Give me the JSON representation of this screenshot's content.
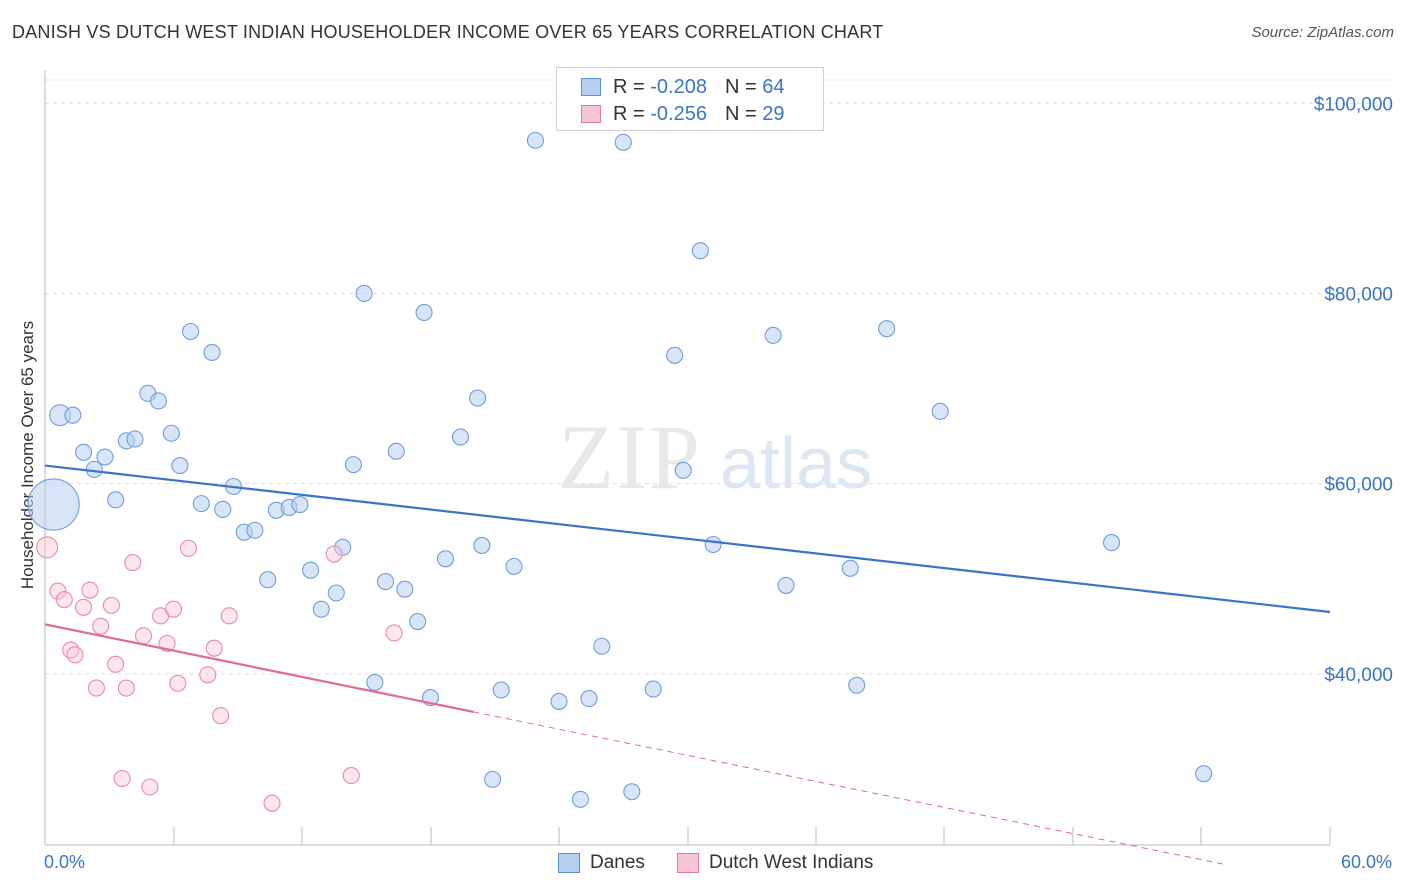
{
  "title": "DANISH VS DUTCH WEST INDIAN HOUSEHOLDER INCOME OVER 65 YEARS CORRELATION CHART",
  "source": "Source: ZipAtlas.com",
  "watermark": {
    "zip": "ZIP",
    "atlas": "atlas"
  },
  "legend_top": {
    "rows": [
      {
        "r_label": "R =",
        "r_value": "-0.208",
        "n_label": "N =",
        "n_value": "64",
        "color": "#5b8fd6",
        "fill": "#b7d0f1"
      },
      {
        "r_label": "R =",
        "r_value": "-0.256",
        "n_label": "N =",
        "n_value": "29",
        "color": "#e67a9e",
        "fill": "#f8c5d4"
      }
    ]
  },
  "legend_bottom": {
    "items": [
      {
        "label": "Danes",
        "color": "#5b8fd6",
        "fill": "#b7d0f1"
      },
      {
        "label": "Dutch West Indians",
        "color": "#e67a9e",
        "fill": "#f8c5d4"
      }
    ]
  },
  "chart_data": {
    "type": "scatter",
    "ylabel": "Householder Income Over 65 years",
    "x_tick_labels": {
      "min": "0.0%",
      "max": "60.0%"
    },
    "y_tick_labels": [
      "$40,000",
      "$60,000",
      "$80,000",
      "$100,000"
    ],
    "y_ticks": [
      40000,
      60000,
      80000,
      100000
    ],
    "xlim": [
      0,
      60
    ],
    "ylim": [
      22000,
      103500
    ],
    "grid": true,
    "colors": {
      "danes": "#3a74c8",
      "dutch": "#e06b96"
    },
    "series": [
      {
        "name": "Danes",
        "trend": {
          "x0": 0,
          "y0": 61900,
          "x1": 60,
          "y1": 46500
        },
        "points": [
          [
            0.4,
            57800,
            3.2
          ],
          [
            0.7,
            67200,
            1.3
          ],
          [
            1.3,
            67200,
            1.0
          ],
          [
            1.8,
            63300,
            1.0
          ],
          [
            2.3,
            61500,
            1.0
          ],
          [
            2.8,
            62800,
            1.0
          ],
          [
            3.3,
            58300,
            1.0
          ],
          [
            3.8,
            64500,
            1.0
          ],
          [
            4.2,
            64700,
            1.0
          ],
          [
            4.8,
            69500,
            1.0
          ],
          [
            5.3,
            68700,
            1.0
          ],
          [
            5.9,
            65300,
            1.0
          ],
          [
            6.3,
            61900,
            1.0
          ],
          [
            6.8,
            76000,
            1.0
          ],
          [
            7.3,
            57900,
            1.0
          ],
          [
            7.8,
            73800,
            1.0
          ],
          [
            8.3,
            57300,
            1.0
          ],
          [
            8.8,
            59700,
            1.0
          ],
          [
            9.3,
            54900,
            1.0
          ],
          [
            9.8,
            55100,
            1.0
          ],
          [
            10.4,
            49900,
            1.0
          ],
          [
            10.8,
            57200,
            1.0
          ],
          [
            11.4,
            57500,
            1.0
          ],
          [
            11.9,
            57800,
            1.0
          ],
          [
            12.4,
            50900,
            1.0
          ],
          [
            12.9,
            46800,
            1.0
          ],
          [
            13.6,
            48500,
            1.0
          ],
          [
            13.9,
            53300,
            1.0
          ],
          [
            14.4,
            62000,
            1.0
          ],
          [
            14.9,
            80000,
            1.0
          ],
          [
            15.4,
            39100,
            1.0
          ],
          [
            15.9,
            49700,
            1.0
          ],
          [
            16.4,
            63400,
            1.0
          ],
          [
            16.8,
            48900,
            1.0
          ],
          [
            17.4,
            45500,
            1.0
          ],
          [
            17.7,
            78000,
            1.0
          ],
          [
            18.0,
            37500,
            1.0
          ],
          [
            18.7,
            52100,
            1.0
          ],
          [
            19.4,
            64900,
            1.0
          ],
          [
            20.2,
            69000,
            1.0
          ],
          [
            20.4,
            53500,
            1.0
          ],
          [
            20.9,
            28900,
            1.0
          ],
          [
            21.3,
            38300,
            1.0
          ],
          [
            21.9,
            51300,
            1.0
          ],
          [
            22.9,
            96100,
            1.0
          ],
          [
            24.0,
            37100,
            1.0
          ],
          [
            25.0,
            26800,
            1.0
          ],
          [
            25.4,
            37400,
            1.0
          ],
          [
            26.0,
            42900,
            1.0
          ],
          [
            27.0,
            95900,
            1.0
          ],
          [
            27.4,
            27600,
            1.0
          ],
          [
            28.4,
            38400,
            1.0
          ],
          [
            29.4,
            73500,
            1.0
          ],
          [
            29.8,
            61400,
            1.0
          ],
          [
            30.6,
            84500,
            1.0
          ],
          [
            31.2,
            53600,
            1.0
          ],
          [
            34.0,
            75600,
            1.0
          ],
          [
            34.6,
            49300,
            1.0
          ],
          [
            37.6,
            51100,
            1.0
          ],
          [
            37.9,
            38800,
            1.0
          ],
          [
            39.3,
            76300,
            1.0
          ],
          [
            41.8,
            67600,
            1.0
          ],
          [
            49.8,
            53800,
            1.0
          ],
          [
            54.1,
            29500,
            1.0
          ]
        ]
      },
      {
        "name": "Dutch West Indians",
        "trend": {
          "x0": 0,
          "y0": 45200,
          "x1": 20,
          "y1": 36000,
          "dash_x1": 55,
          "dash_y1": 20000
        },
        "points": [
          [
            0.1,
            53300,
            1.3
          ],
          [
            0.6,
            48700,
            1.0
          ],
          [
            0.9,
            47800,
            1.0
          ],
          [
            1.2,
            42500,
            1.0
          ],
          [
            1.4,
            42000,
            1.0
          ],
          [
            1.8,
            47000,
            1.0
          ],
          [
            2.1,
            48800,
            1.0
          ],
          [
            2.4,
            38500,
            1.0
          ],
          [
            2.6,
            45000,
            1.0
          ],
          [
            3.1,
            47200,
            1.0
          ],
          [
            3.3,
            41000,
            1.0
          ],
          [
            3.6,
            29000,
            1.0
          ],
          [
            3.8,
            38500,
            1.0
          ],
          [
            4.1,
            51700,
            1.0
          ],
          [
            4.6,
            44000,
            1.0
          ],
          [
            4.9,
            28100,
            1.0
          ],
          [
            5.4,
            46100,
            1.0
          ],
          [
            5.7,
            43200,
            1.0
          ],
          [
            6.0,
            46800,
            1.0
          ],
          [
            6.2,
            39000,
            1.0
          ],
          [
            6.7,
            53200,
            1.0
          ],
          [
            7.6,
            39900,
            1.0
          ],
          [
            7.9,
            42700,
            1.0
          ],
          [
            8.2,
            35600,
            1.0
          ],
          [
            8.6,
            46100,
            1.0
          ],
          [
            10.6,
            26400,
            1.0
          ],
          [
            13.5,
            52600,
            1.0
          ],
          [
            14.3,
            29300,
            1.0
          ],
          [
            16.3,
            44300,
            1.0
          ]
        ]
      }
    ]
  }
}
